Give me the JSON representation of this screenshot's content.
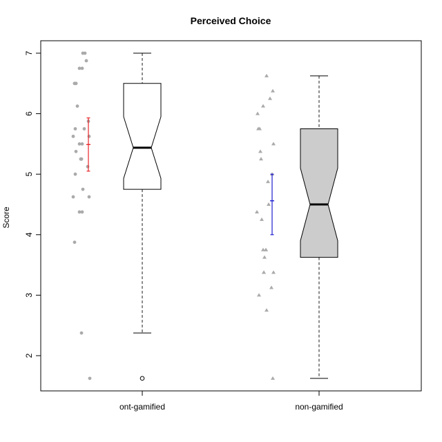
{
  "chart_data": {
    "type": "boxplot",
    "title": "Perceived Choice",
    "xlabel": "",
    "ylabel": "Score",
    "ylim": [
      1.45,
      7.1
    ],
    "yticks": [
      2,
      3,
      4,
      5,
      6,
      7
    ],
    "grid": false,
    "legend": "none",
    "categories": [
      "ont-gamified",
      "non-gamified"
    ],
    "groups": [
      {
        "category": "ont-gamified",
        "box_color": "#ffffff",
        "point_color": "#aaaaaa",
        "point_shape": "circle",
        "errorbar_color": "#e8262a",
        "stats": {
          "min": 2.375,
          "q1": 4.75,
          "median": 5.4375,
          "q3": 6.5,
          "max": 7.0,
          "notch_low": 4.93,
          "notch_high": 5.95,
          "outliers": [
            1.625
          ]
        },
        "mean": 5.49,
        "ci": [
          5.05,
          5.93
        ],
        "points": [
          7.0,
          7.0,
          6.875,
          6.75,
          6.75,
          6.5,
          6.5,
          6.5,
          6.5,
          6.125,
          5.875,
          5.75,
          5.75,
          5.625,
          5.625,
          5.5,
          5.5,
          5.375,
          5.25,
          5.25,
          5.25,
          5.25,
          5.125,
          5.0,
          4.75,
          4.625,
          4.625,
          4.375,
          4.375,
          3.875,
          2.375,
          1.625
        ]
      },
      {
        "category": "non-gamified",
        "box_color": "#cccccc",
        "point_color": "#aaaaaa",
        "point_shape": "triangle",
        "errorbar_color": "#1c1ccf",
        "stats": {
          "min": 1.625,
          "q1": 3.625,
          "median": 4.5,
          "q3": 5.75,
          "max": 6.625,
          "notch_low": 3.9,
          "notch_high": 5.1,
          "outliers": []
        },
        "mean": 4.56,
        "ci": [
          4.0,
          5.0
        ],
        "points": [
          6.625,
          6.375,
          6.25,
          6.125,
          6.0,
          5.75,
          5.75,
          5.5,
          5.375,
          5.25,
          5.0,
          4.875,
          4.5,
          4.375,
          4.25,
          3.75,
          3.75,
          3.75,
          3.625,
          3.375,
          3.375,
          3.375,
          3.125,
          3.0,
          2.75,
          1.625
        ]
      }
    ]
  }
}
